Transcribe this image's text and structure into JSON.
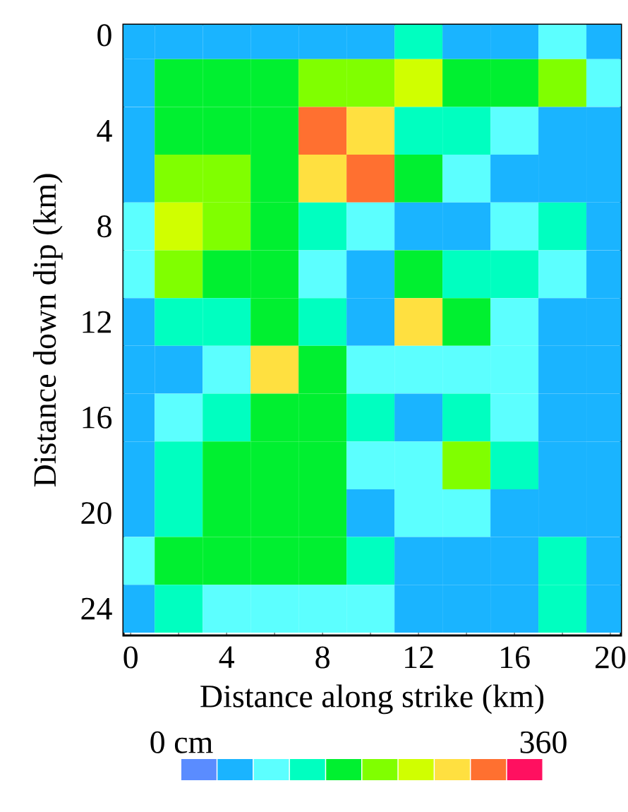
{
  "chart_data": {
    "type": "heatmap",
    "xlabel": "Distance along strike (km)",
    "ylabel": "Distance down dip (km)",
    "categories": [
      "0",
      null,
      "4",
      null,
      "8",
      null,
      "12",
      null,
      "16",
      null,
      "20"
    ],
    "y_categories": [
      "0",
      null,
      "4",
      null,
      "8",
      null,
      "12",
      null,
      "16",
      null,
      "20",
      null,
      "24"
    ],
    "cells": [
      [
        54,
        54,
        54,
        54,
        54,
        54,
        126,
        54,
        54,
        90,
        54
      ],
      [
        54,
        162,
        162,
        162,
        198,
        198,
        234,
        162,
        162,
        198,
        90
      ],
      [
        54,
        162,
        162,
        162,
        306,
        270,
        126,
        126,
        90,
        54,
        54
      ],
      [
        54,
        198,
        198,
        162,
        270,
        306,
        162,
        90,
        54,
        54,
        54
      ],
      [
        90,
        234,
        198,
        162,
        126,
        90,
        54,
        54,
        90,
        126,
        54
      ],
      [
        90,
        198,
        162,
        162,
        90,
        54,
        162,
        126,
        126,
        90,
        54
      ],
      [
        54,
        126,
        126,
        162,
        126,
        54,
        270,
        162,
        90,
        54,
        54
      ],
      [
        54,
        54,
        90,
        270,
        162,
        90,
        90,
        90,
        90,
        54,
        54
      ],
      [
        54,
        90,
        126,
        162,
        162,
        126,
        54,
        126,
        90,
        54,
        54
      ],
      [
        54,
        126,
        162,
        162,
        162,
        90,
        90,
        198,
        126,
        54,
        54
      ],
      [
        54,
        126,
        162,
        162,
        162,
        54,
        90,
        90,
        54,
        54,
        54
      ],
      [
        90,
        162,
        162,
        162,
        162,
        126,
        54,
        54,
        54,
        126,
        54
      ],
      [
        54,
        126,
        90,
        90,
        90,
        90,
        54,
        54,
        54,
        126,
        54
      ]
    ],
    "colors": [
      "#5a8cff",
      "#1ab4ff",
      "#5cffff",
      "#00ffc0",
      "#00f030",
      "#80ff00",
      "#d0ff00",
      "#ffe040",
      "#ff7030",
      "#ff1060"
    ],
    "clim": [
      0,
      360
    ],
    "cticks": [
      {
        "value": 0,
        "label": "0 cm"
      },
      360
    ]
  }
}
